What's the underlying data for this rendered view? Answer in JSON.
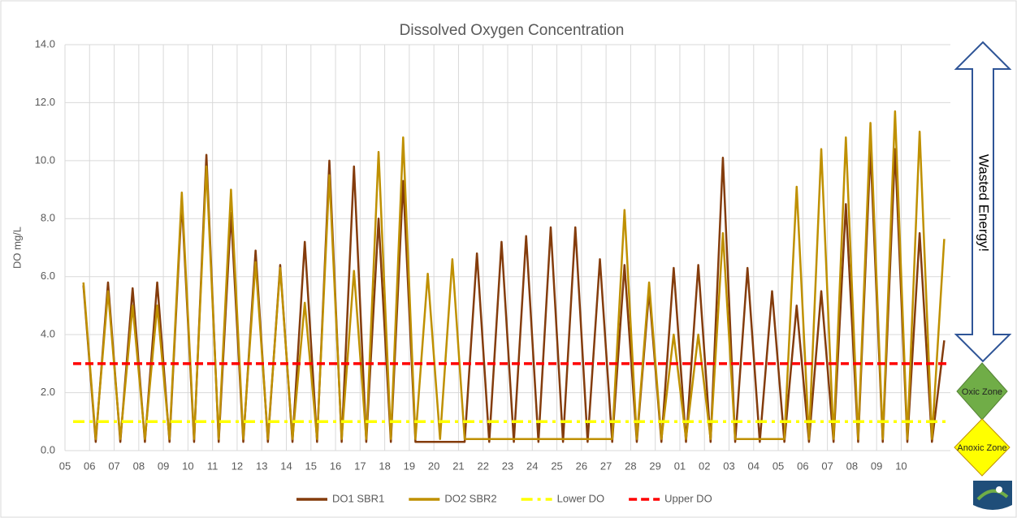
{
  "chart_data": {
    "type": "line",
    "title": "Dissolved Oxygen Concentration",
    "y_label": "DO mg/L",
    "x": [
      0.75,
      1.25,
      1.75,
      2.25,
      2.75,
      3.25,
      3.75,
      4.25,
      4.75,
      5.25,
      5.75,
      6.25,
      6.75,
      7.25,
      7.75,
      8.25,
      8.75,
      9.25,
      9.75,
      10.25,
      10.75,
      11.25,
      11.75,
      12.25,
      12.75,
      13.25,
      13.75,
      14.25,
      14.75,
      15.25,
      15.75,
      16.25,
      16.75,
      17.25,
      17.75,
      18.25,
      18.75,
      19.25,
      19.75,
      20.25,
      20.75,
      21.25,
      21.75,
      22.25,
      22.75,
      23.25,
      23.75,
      24.25,
      24.75,
      25.25,
      25.75,
      26.25,
      26.75,
      27.25,
      27.75,
      28.25,
      28.75,
      29.25,
      29.75,
      30.25,
      30.75,
      31.25,
      31.75,
      32.25,
      32.75,
      33.25,
      33.75,
      34.25,
      34.75,
      35.25,
      35.75
    ],
    "series": [
      {
        "name": "DO1 SBR1",
        "color": "#843c0c",
        "values": [
          5.7,
          0.3,
          5.8,
          0.3,
          5.6,
          0.3,
          5.8,
          0.3,
          8.6,
          0.3,
          10.2,
          0.3,
          8.2,
          0.3,
          6.9,
          0.3,
          6.4,
          0.3,
          7.2,
          0.3,
          10.0,
          0.3,
          9.8,
          0.3,
          8.0,
          0.3,
          9.3,
          0.3,
          0.3,
          0.3,
          0.3,
          0.3,
          6.8,
          0.3,
          7.2,
          0.3,
          7.4,
          0.3,
          7.7,
          0.3,
          7.7,
          0.3,
          6.6,
          0.3,
          6.4,
          0.3,
          5.5,
          0.3,
          6.3,
          0.3,
          6.4,
          0.3,
          10.1,
          0.3,
          6.3,
          0.3,
          5.5,
          0.3,
          5.0,
          0.3,
          5.5,
          0.3,
          8.5,
          0.3,
          10.4,
          0.3,
          10.4,
          0.3,
          7.5,
          0.3,
          3.8
        ]
      },
      {
        "name": "DO2 SBR2",
        "color": "#bf9000",
        "values": [
          5.8,
          0.4,
          5.5,
          0.4,
          5.0,
          0.4,
          5.0,
          0.4,
          8.9,
          0.4,
          9.8,
          0.4,
          9.0,
          0.4,
          6.5,
          0.4,
          6.3,
          0.4,
          5.1,
          0.4,
          9.5,
          0.4,
          6.2,
          0.4,
          10.3,
          0.4,
          10.8,
          0.4,
          6.1,
          0.4,
          6.6,
          0.4,
          0.4,
          0.4,
          0.4,
          0.4,
          0.4,
          0.4,
          0.4,
          0.4,
          0.4,
          0.4,
          0.4,
          0.4,
          8.3,
          0.4,
          5.8,
          0.4,
          4.0,
          0.4,
          4.0,
          0.4,
          7.5,
          0.4,
          0.4,
          0.4,
          0.4,
          0.4,
          9.1,
          0.4,
          10.4,
          0.4,
          10.8,
          0.4,
          11.3,
          0.4,
          11.7,
          0.4,
          11.0,
          0.4,
          7.3
        ]
      }
    ],
    "reference_lines": [
      {
        "name": "Lower DO",
        "value": 1.0,
        "color": "#ffff00",
        "style": "dash-dot"
      },
      {
        "name": "Upper DO",
        "value": 3.0,
        "color": "#ff0000",
        "style": "dashed"
      }
    ],
    "xlim": [
      0,
      36
    ],
    "xticks": [
      {
        "value": 0,
        "label": "05"
      },
      {
        "value": 1,
        "label": "06"
      },
      {
        "value": 2,
        "label": "07"
      },
      {
        "value": 3,
        "label": "08"
      },
      {
        "value": 4,
        "label": "09"
      },
      {
        "value": 5,
        "label": "10"
      },
      {
        "value": 6,
        "label": "11"
      },
      {
        "value": 7,
        "label": "12"
      },
      {
        "value": 8,
        "label": "13"
      },
      {
        "value": 9,
        "label": "14"
      },
      {
        "value": 10,
        "label": "15"
      },
      {
        "value": 11,
        "label": "16"
      },
      {
        "value": 12,
        "label": "17"
      },
      {
        "value": 13,
        "label": "18"
      },
      {
        "value": 14,
        "label": "19"
      },
      {
        "value": 15,
        "label": "20"
      },
      {
        "value": 16,
        "label": "21"
      },
      {
        "value": 17,
        "label": "22"
      },
      {
        "value": 18,
        "label": "23"
      },
      {
        "value": 19,
        "label": "24"
      },
      {
        "value": 20,
        "label": "25"
      },
      {
        "value": 21,
        "label": "26"
      },
      {
        "value": 22,
        "label": "27"
      },
      {
        "value": 23,
        "label": "28"
      },
      {
        "value": 24,
        "label": "29"
      },
      {
        "value": 25,
        "label": "01"
      },
      {
        "value": 26,
        "label": "02"
      },
      {
        "value": 27,
        "label": "03"
      },
      {
        "value": 28,
        "label": "04"
      },
      {
        "value": 29,
        "label": "05"
      },
      {
        "value": 30,
        "label": "06"
      },
      {
        "value": 31,
        "label": "07"
      },
      {
        "value": 32,
        "label": "08"
      },
      {
        "value": 33,
        "label": "09"
      },
      {
        "value": 34,
        "label": "10"
      }
    ],
    "ylim": [
      0,
      14
    ],
    "yticks": [
      {
        "value": 0,
        "label": "0.0"
      },
      {
        "value": 2,
        "label": "2.0"
      },
      {
        "value": 4,
        "label": "4.0"
      },
      {
        "value": 6,
        "label": "6.0"
      },
      {
        "value": 8,
        "label": "8.0"
      },
      {
        "value": 10,
        "label": "10.0"
      },
      {
        "value": 12,
        "label": "12.0"
      },
      {
        "value": 14,
        "label": "14.0"
      }
    ],
    "grid": true,
    "legend": "bottom",
    "annotations": [
      "Wasted Energy!",
      "Oxic Zone",
      "Anoxic Zone"
    ]
  }
}
